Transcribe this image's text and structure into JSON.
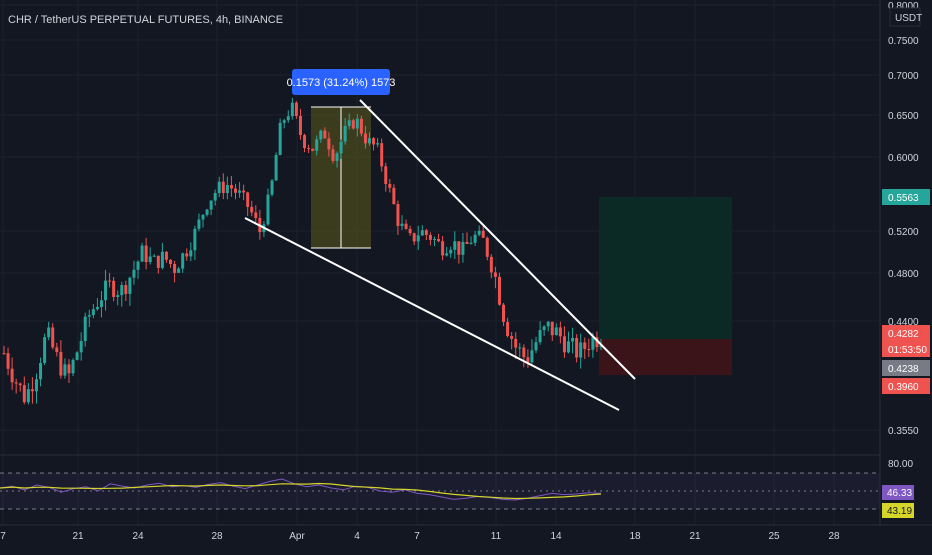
{
  "header": {
    "title": "CHR / TetherUS PERPETUAL FUTURES, 4h, BINANCE",
    "currency": "USDT"
  },
  "colors": {
    "background": "#131722",
    "up": "#26a69a",
    "down": "#ef5350",
    "grid": "#1e222d",
    "axis_text": "#d1d4dc",
    "rsi": "#7e57c2",
    "rsi_ma": "#d5d52a",
    "measure_box": "#4a4a1e",
    "measure_label": "#2962ff",
    "target_zone": "#0b2a26",
    "stop_zone": "#3a1418",
    "trendline": "#ffffff"
  },
  "chart_data": {
    "type": "candlestick",
    "symbol": "CHR / TetherUS PERPETUAL FUTURES",
    "interval": "4h",
    "exchange": "BINANCE",
    "price_axis_ticks": [
      "0.8000",
      "0.7500",
      "0.7000",
      "0.6500",
      "0.6000",
      "0.5200",
      "0.4800",
      "0.4400",
      "0.3550"
    ],
    "time_axis_ticks": [
      "7",
      "21",
      "24",
      "28",
      "Apr",
      "4",
      "7",
      "11",
      "14",
      "18",
      "21",
      "25",
      "28"
    ],
    "price_labels": [
      {
        "name": "target",
        "value": "0.5563",
        "color": "#26a69a"
      },
      {
        "name": "last",
        "value": "0.4282",
        "color": "#ef5350"
      },
      {
        "name": "countdown",
        "value": "01:53:50",
        "color": "#ef5350"
      },
      {
        "name": "entry",
        "value": "0.4238",
        "color": "#787b86"
      },
      {
        "name": "stop",
        "value": "0.3960",
        "color": "#ef5350"
      }
    ],
    "measure": {
      "label": "0.1573 (31.24%) 1573",
      "from": 0.5035,
      "to": 0.6608
    },
    "long_position": {
      "entry": 0.4238,
      "target": 0.5563,
      "stop": 0.396
    },
    "trendlines": [
      {
        "name": "upper",
        "from_price": 0.67,
        "to_price": 0.395
      },
      {
        "name": "lower",
        "from_price": 0.555,
        "to_price": 0.368
      }
    ],
    "close_path": [
      0.415,
      0.395,
      0.38,
      0.4,
      0.43,
      0.41,
      0.395,
      0.42,
      0.445,
      0.46,
      0.47,
      0.465,
      0.48,
      0.5,
      0.49,
      0.495,
      0.485,
      0.5,
      0.52,
      0.55,
      0.565,
      0.57,
      0.56,
      0.545,
      0.52,
      0.56,
      0.64,
      0.66,
      0.62,
      0.61,
      0.63,
      0.6,
      0.63,
      0.645,
      0.62,
      0.61,
      0.57,
      0.53,
      0.51,
      0.52,
      0.515,
      0.505,
      0.51,
      0.5,
      0.515,
      0.51,
      0.48,
      0.44,
      0.42,
      0.41,
      0.425,
      0.435,
      0.43,
      0.42,
      0.415,
      0.425,
      0.4282
    ],
    "rsi": {
      "levels": [
        "80.00"
      ],
      "value": "46.33",
      "ma_value": "43.19",
      "values": [
        55,
        58,
        52,
        60,
        56,
        48,
        54,
        57,
        50,
        62,
        58,
        55,
        60,
        63,
        57,
        59,
        56,
        61,
        64,
        58,
        54,
        60,
        66,
        70,
        62,
        57,
        60,
        55,
        52,
        58,
        56,
        50,
        48,
        52,
        46,
        44,
        40,
        36,
        38,
        41,
        39,
        36,
        35,
        38,
        42,
        46,
        44,
        45,
        47,
        46
      ]
    }
  }
}
